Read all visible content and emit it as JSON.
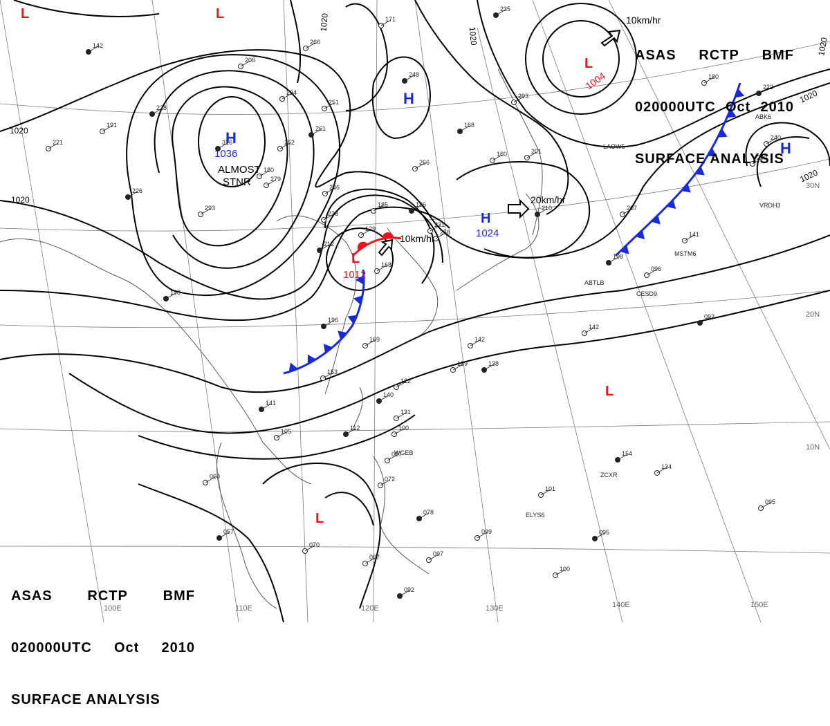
{
  "header": {
    "line1": [
      "ASAS",
      "RCTP",
      "BMF"
    ],
    "line2": [
      "020000UTC",
      "Oct",
      "2010"
    ],
    "line3": "SURFACE ANALYSIS"
  },
  "isobar_labels": [
    "1020",
    "1020",
    "1020",
    "1020",
    "1020",
    "1020",
    "1020"
  ],
  "pressure_centers": [
    {
      "type": "H",
      "value": "1036",
      "color": "#1a2bd6",
      "note": "ALMOST STNR"
    },
    {
      "type": "H",
      "value": "",
      "color": "#1a2bd6"
    },
    {
      "type": "L",
      "value": "1004",
      "color": "#e8141e"
    },
    {
      "type": "H",
      "value": "1024",
      "color": "#1a2bd6"
    },
    {
      "type": "L",
      "value": "1012",
      "color": "#e8141e"
    },
    {
      "type": "H",
      "value": "",
      "color": "#1a2bd6"
    },
    {
      "type": "L",
      "value": "",
      "color": "#e8141e"
    },
    {
      "type": "L",
      "value": "",
      "color": "#e8141e"
    },
    {
      "type": "L",
      "value": "",
      "color": "#e8141e"
    },
    {
      "type": "L",
      "value": "",
      "color": "#e8141e"
    }
  ],
  "motion_labels": [
    "10km/hr",
    "20km/hr",
    "10km/hr"
  ],
  "longitude_labels": [
    "100E",
    "110E",
    "120E",
    "130E",
    "140E",
    "150E"
  ],
  "latitude_labels": [
    "30N",
    "20N",
    "10N"
  ],
  "fronts": {
    "cold_color": "#1a2bd6",
    "warm_color": "#e8141e"
  },
  "station_values": [
    "142",
    "206",
    "234",
    "228",
    "191",
    "221",
    "316",
    "279",
    "293",
    "226",
    "236",
    "238",
    "212",
    "129",
    "185",
    "186",
    "231",
    "168",
    "196",
    "169",
    "153",
    "141",
    "105",
    "060",
    "057",
    "070",
    "067",
    "092",
    "087",
    "072",
    "078",
    "099",
    "097",
    "112",
    "100",
    "131",
    "140",
    "122",
    "139",
    "138",
    "142",
    "142",
    "154",
    "134",
    "101",
    "095",
    "100",
    "095",
    "092",
    "096",
    "141",
    "198",
    "207",
    "180",
    "222",
    "240",
    "200",
    "168",
    "160",
    "201",
    "210",
    "258",
    "266",
    "248",
    "251",
    "171",
    "235",
    "293",
    "266",
    "261",
    "252",
    "180",
    "198"
  ],
  "station_ids": [
    "LAOW5",
    "ABTLB",
    "CESD9",
    "MSTM6",
    "ZCXR",
    "ELYS6",
    "WGEB",
    "VRDH3",
    "ABK6"
  ]
}
